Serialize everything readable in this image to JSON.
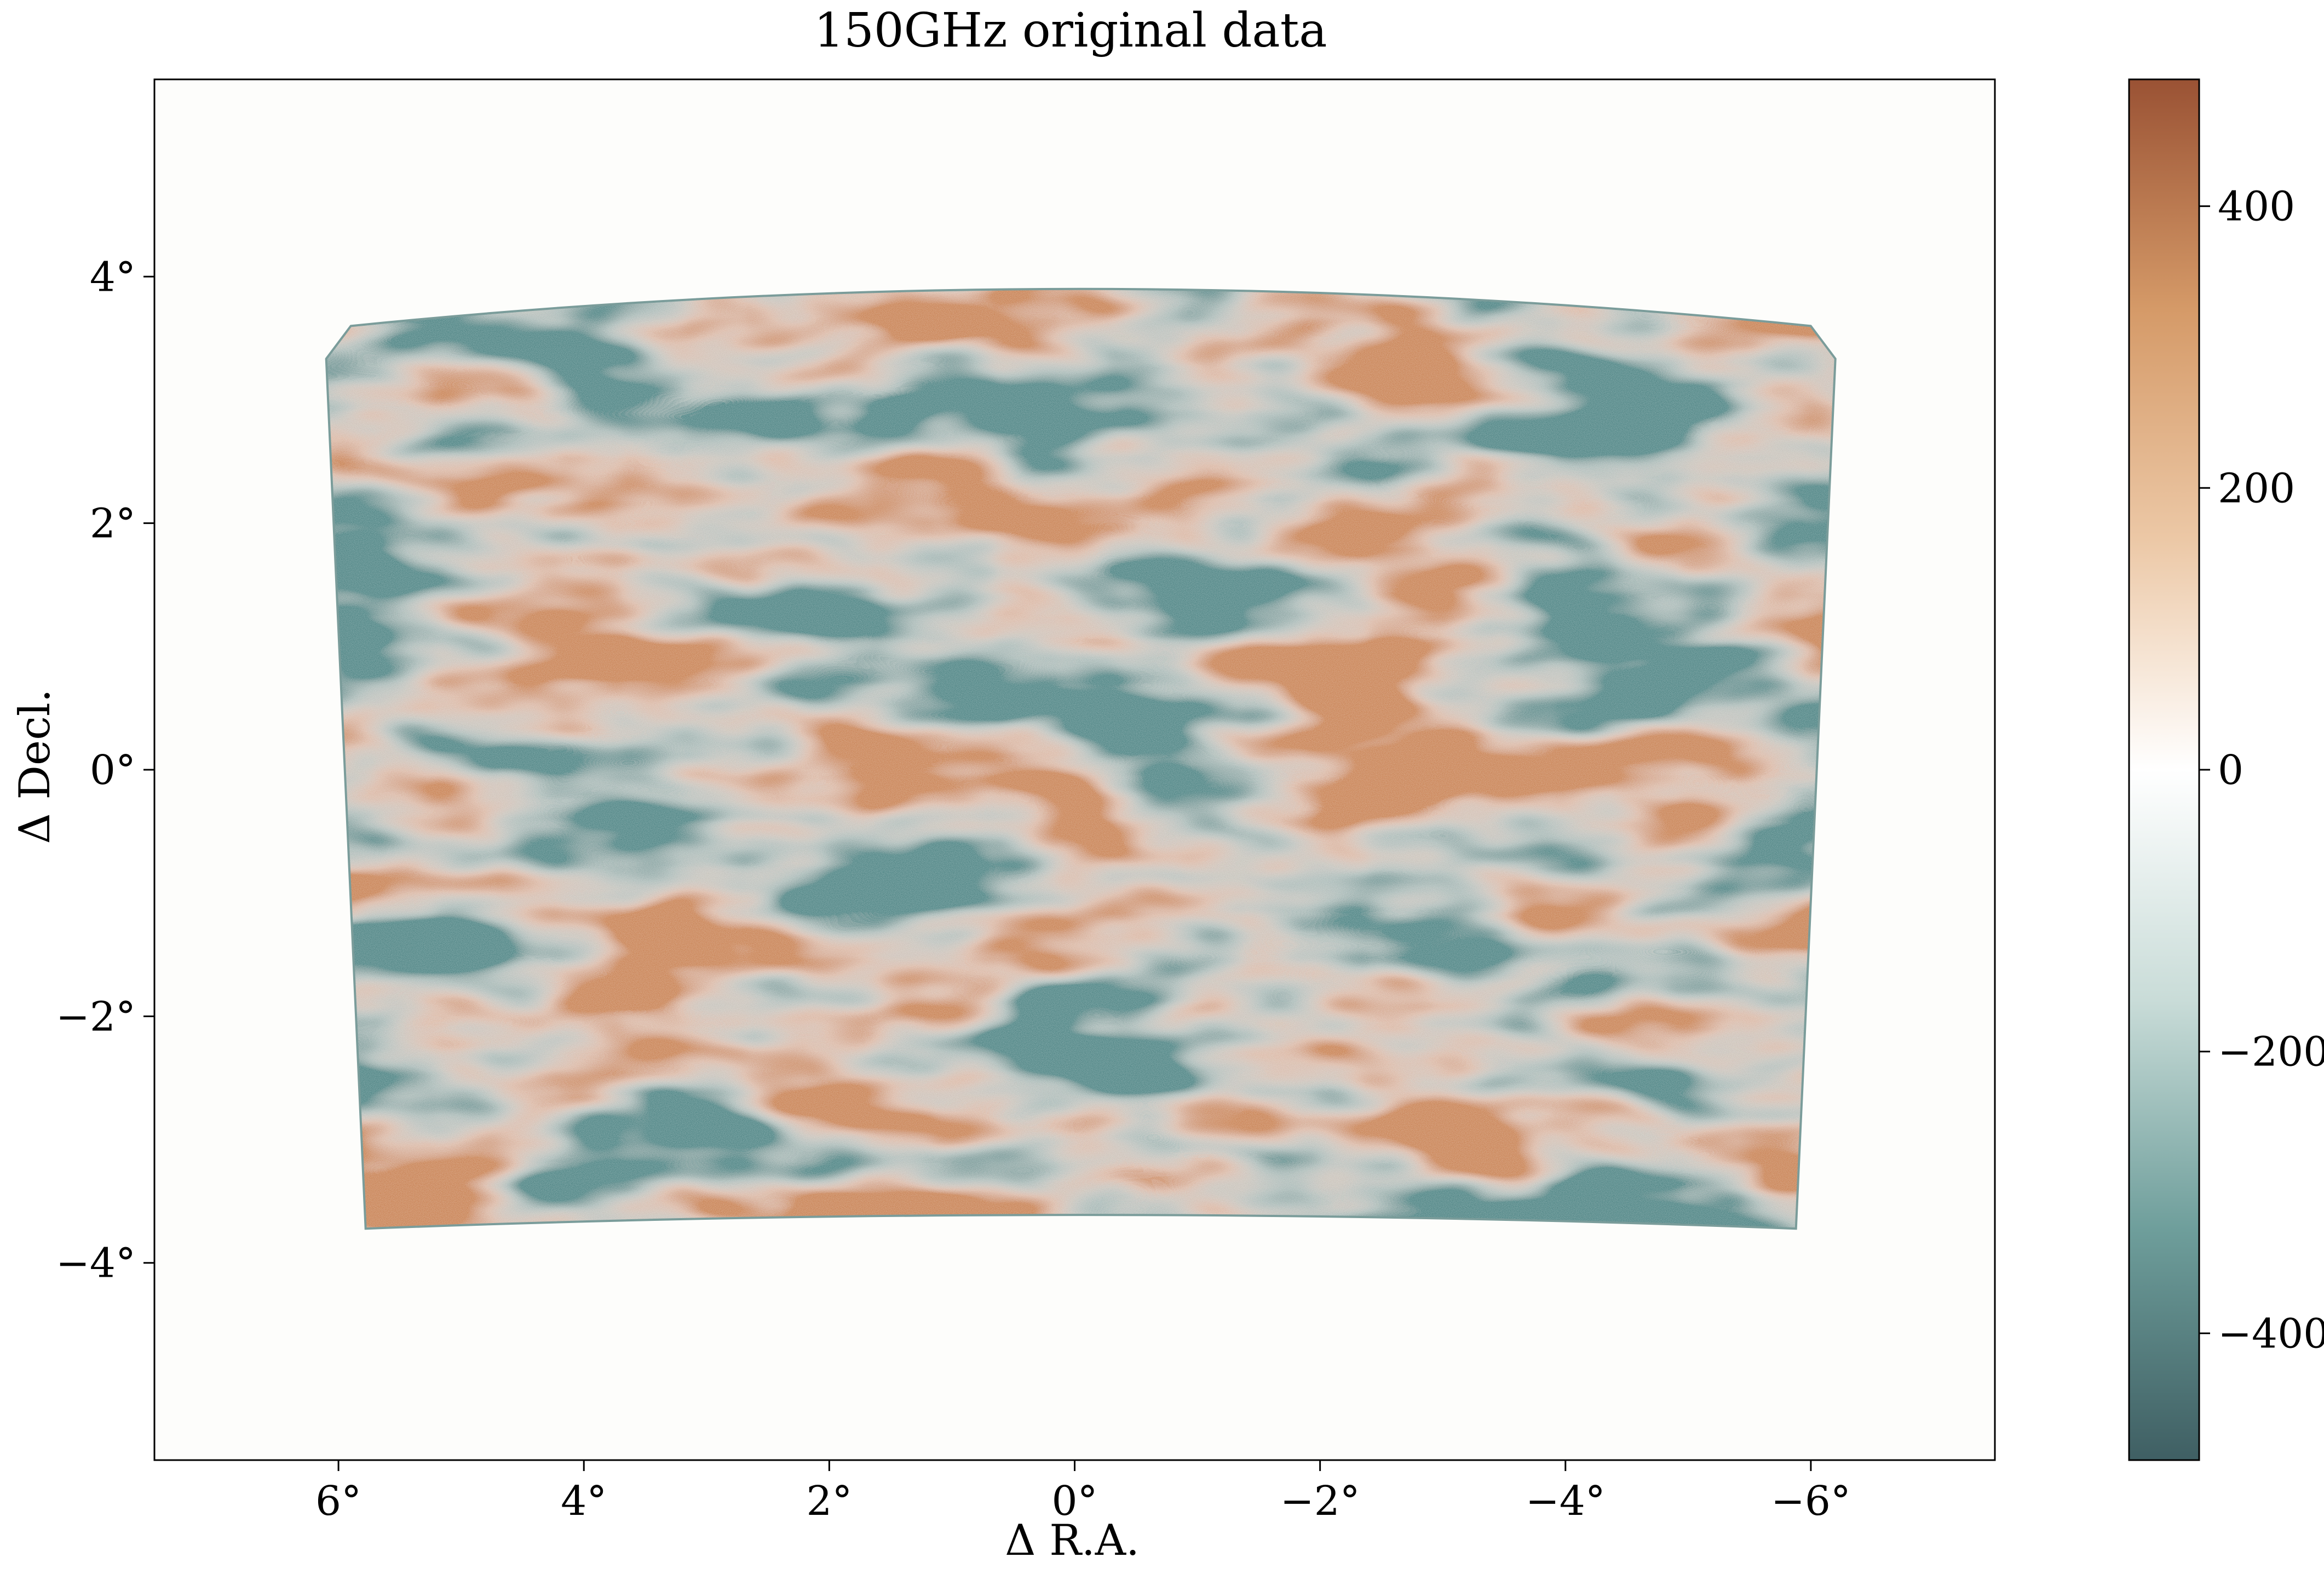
{
  "chart_data": {
    "type": "heatmap",
    "title": "150GHz original data",
    "xlabel": "Δ R.A.",
    "ylabel": "Δ Decl.",
    "x_direction": "decreasing",
    "xlim": [
      7.5,
      -7.5
    ],
    "ylim": [
      -5.6,
      5.6
    ],
    "x_ticks": [
      {
        "value": 6,
        "label": "6°"
      },
      {
        "value": 4,
        "label": "4°"
      },
      {
        "value": 2,
        "label": "2°"
      },
      {
        "value": 0,
        "label": "0°"
      },
      {
        "value": -2,
        "label": "−2°"
      },
      {
        "value": -4,
        "label": "−4°"
      },
      {
        "value": -6,
        "label": "−6°"
      }
    ],
    "y_ticks": [
      {
        "value": 4,
        "label": "4°"
      },
      {
        "value": 2,
        "label": "2°"
      },
      {
        "value": 0,
        "label": "0°"
      },
      {
        "value": -2,
        "label": "−2°"
      },
      {
        "value": -4,
        "label": "−4°"
      }
    ],
    "field_footprint": {
      "ra_extent": [
        6.1,
        -6.2
      ],
      "decl_top_center": 3.9,
      "decl_top_edge": 3.6,
      "decl_bottom_center": -3.7,
      "decl_bottom_edge": -3.9
    },
    "colorbar": {
      "range": [
        -490,
        490
      ],
      "ticks": [
        {
          "value": 400,
          "label": "400"
        },
        {
          "value": 200,
          "label": "200"
        },
        {
          "value": 0,
          "label": "0"
        },
        {
          "value": -200,
          "label": "−200"
        },
        {
          "value": -400,
          "label": "−400"
        }
      ],
      "colormap": [
        "#3f5f63",
        "#6e9e9b",
        "#c9dcd8",
        "#ffffff",
        "#ecc8a6",
        "#d59a68",
        "#9a5234"
      ]
    },
    "background_color": "#fdfdfb",
    "grid": false
  }
}
